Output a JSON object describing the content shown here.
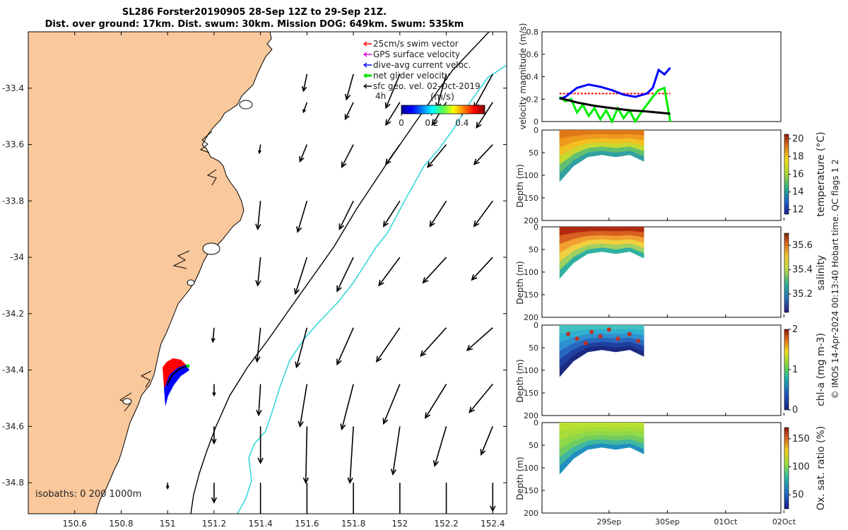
{
  "title": {
    "line1": "SL286 Forster20190905 28-Sep 12Z to 29-Sep 21Z.",
    "line2": "Dist. over ground: 17km. Dist. swum: 30km. Mission DOG: 649km. Swum: 535km"
  },
  "colors": {
    "land": "#F9C89C",
    "sea": "#FFFFFF",
    "isobath_200": "#000000",
    "isobath_1000": "#38D8D8",
    "swim_vector": "#FF0000",
    "gps_velocity": "#E000E0",
    "dive_avg_current": "#0000FF",
    "net_glider_velocity": "#00DD00",
    "sfc_geo_vel": "#000000"
  },
  "chart_data": [
    {
      "type": "map",
      "xlim": [
        150.4,
        152.46
      ],
      "ylim": [
        -34.91,
        -33.2
      ],
      "xticks": [
        "150.6",
        "150.8",
        "151",
        "151.2",
        "151.4",
        "151.6",
        "151.8",
        "152",
        "152.2",
        "152.4"
      ],
      "yticks": [
        "-33.4",
        "-33.6",
        "-33.8",
        "-34",
        "-34.2",
        "-34.4",
        "-34.6",
        "-34.8"
      ],
      "legend": {
        "placement": "top-right",
        "items": [
          {
            "label": "25cm/s swim vector",
            "color": "#FF0000"
          },
          {
            "label": "GPS surface velocity",
            "color": "#E000E0"
          },
          {
            "label": "dive-avg current veloc.",
            "color": "#0000FF"
          },
          {
            "label": "net glider velocity",
            "color": "#00DD00"
          },
          {
            "label": "sfc geo. vel. 02-Oct-2019",
            "color": "#000000"
          }
        ]
      },
      "colorbar": {
        "label": "(m/s)",
        "annotation": "4h",
        "range": [
          0,
          0.55
        ],
        "ticks": [
          "0",
          "0.2",
          "0.4"
        ]
      },
      "isobath_label": "isobaths: 0   200  1000m",
      "glider_track": {
        "lon": 151.05,
        "lat": -34.44
      },
      "current_arrows": [
        [
          151.6,
          -33.35,
          -0.015,
          -0.06
        ],
        [
          151.8,
          -33.35,
          -0.03,
          -0.09
        ],
        [
          152.0,
          -33.35,
          -0.06,
          -0.12
        ],
        [
          152.2,
          -33.35,
          -0.04,
          -0.12
        ],
        [
          152.4,
          -33.35,
          -0.08,
          -0.12
        ],
        [
          151.6,
          -33.45,
          -0.015,
          -0.035
        ],
        [
          151.8,
          -33.45,
          -0.035,
          -0.06
        ],
        [
          152.0,
          -33.45,
          -0.06,
          -0.08
        ],
        [
          152.2,
          -33.45,
          -0.06,
          -0.08
        ],
        [
          152.4,
          -33.45,
          -0.07,
          -0.09
        ],
        [
          151.4,
          -33.6,
          -0.005,
          -0.03
        ],
        [
          151.6,
          -33.6,
          -0.03,
          -0.06
        ],
        [
          151.8,
          -33.6,
          -0.05,
          -0.08
        ],
        [
          152.0,
          -33.6,
          -0.06,
          -0.07
        ],
        [
          152.2,
          -33.6,
          -0.08,
          -0.08
        ],
        [
          152.4,
          -33.6,
          -0.08,
          -0.07
        ],
        [
          151.4,
          -33.8,
          -0.012,
          -0.1
        ],
        [
          151.6,
          -33.8,
          -0.04,
          -0.11
        ],
        [
          151.8,
          -33.8,
          -0.06,
          -0.1
        ],
        [
          152.0,
          -33.8,
          -0.07,
          -0.09
        ],
        [
          152.2,
          -33.8,
          -0.07,
          -0.09
        ],
        [
          152.4,
          -33.8,
          -0.08,
          -0.09
        ],
        [
          151.4,
          -34.0,
          -0.012,
          -0.1
        ],
        [
          151.6,
          -34.0,
          -0.05,
          -0.13
        ],
        [
          151.8,
          -34.0,
          -0.07,
          -0.12
        ],
        [
          152.0,
          -34.0,
          -0.09,
          -0.1
        ],
        [
          152.2,
          -34.0,
          -0.1,
          -0.09
        ],
        [
          152.4,
          -34.0,
          -0.09,
          -0.08
        ],
        [
          151.2,
          -34.25,
          -0.005,
          -0.05
        ],
        [
          151.4,
          -34.25,
          -0.015,
          -0.12
        ],
        [
          151.6,
          -34.25,
          -0.045,
          -0.14
        ],
        [
          151.8,
          -34.25,
          -0.07,
          -0.13
        ],
        [
          152.0,
          -34.25,
          -0.1,
          -0.12
        ],
        [
          152.2,
          -34.25,
          -0.11,
          -0.1
        ],
        [
          152.4,
          -34.25,
          -0.11,
          -0.08
        ],
        [
          151.2,
          -34.45,
          0.0,
          -0.04
        ],
        [
          151.4,
          -34.45,
          -0.008,
          -0.11
        ],
        [
          151.6,
          -34.45,
          -0.03,
          -0.15
        ],
        [
          151.8,
          -34.45,
          -0.05,
          -0.16
        ],
        [
          152.0,
          -34.45,
          -0.07,
          -0.14
        ],
        [
          152.2,
          -34.45,
          -0.09,
          -0.12
        ],
        [
          152.4,
          -34.45,
          -0.1,
          -0.1
        ],
        [
          151.2,
          -34.6,
          0.0,
          -0.06
        ],
        [
          151.4,
          -34.6,
          0.0,
          -0.13
        ],
        [
          151.6,
          -34.6,
          -0.005,
          -0.2
        ],
        [
          151.8,
          -34.6,
          -0.015,
          -0.2
        ],
        [
          152.0,
          -34.6,
          -0.03,
          -0.17
        ],
        [
          152.2,
          -34.6,
          -0.05,
          -0.14
        ],
        [
          152.4,
          -34.6,
          -0.05,
          -0.1
        ],
        [
          151.0,
          -34.8,
          0.0,
          -0.02
        ],
        [
          151.2,
          -34.8,
          0.0,
          -0.07
        ],
        [
          151.4,
          -34.8,
          0.0,
          -0.17
        ],
        [
          151.6,
          -34.8,
          0.0,
          -0.19
        ],
        [
          151.8,
          -34.8,
          0.0,
          -0.18
        ],
        [
          152.0,
          -34.8,
          0.0,
          -0.16
        ],
        [
          152.2,
          -34.8,
          0.0,
          -0.13
        ],
        [
          152.4,
          -34.8,
          0.0,
          -0.1
        ]
      ]
    },
    {
      "type": "line",
      "ylabel": "velocity magnitude (m/s)",
      "ylim": [
        0,
        0.8
      ],
      "yticks": [
        "0",
        "0.2",
        "0.4",
        "0.6",
        "0.8"
      ],
      "series": [
        {
          "color": "#FF0000",
          "x": [
            0,
            0.5,
            1.0,
            1.5,
            1.9
          ],
          "y": [
            0.25,
            0.25,
            0.25,
            0.25,
            0.25
          ]
        },
        {
          "color": "#0000FF",
          "x": [
            0,
            0.1,
            0.3,
            0.5,
            0.7,
            0.9,
            1.1,
            1.3,
            1.5,
            1.6,
            1.7,
            1.8,
            1.9
          ],
          "y": [
            0.2,
            0.22,
            0.3,
            0.33,
            0.31,
            0.28,
            0.24,
            0.22,
            0.25,
            0.3,
            0.46,
            0.42,
            0.48
          ]
        },
        {
          "color": "#00EE00",
          "x": [
            0,
            0.1,
            0.2,
            0.3,
            0.4,
            0.5,
            0.6,
            0.7,
            0.8,
            0.9,
            1.0,
            1.1,
            1.2,
            1.3,
            1.4,
            1.5,
            1.6,
            1.7,
            1.8,
            1.9
          ],
          "y": [
            0.22,
            0.18,
            0.2,
            0.08,
            0.15,
            0.05,
            0.12,
            0.02,
            0.1,
            0.0,
            0.12,
            0.03,
            0.1,
            0.0,
            0.08,
            0.15,
            0.22,
            0.28,
            0.3,
            0.0
          ]
        },
        {
          "color": "#000000",
          "x": [
            0,
            0.3,
            0.6,
            0.9,
            1.2,
            1.5,
            1.9
          ],
          "y": [
            0.21,
            0.17,
            0.14,
            0.12,
            0.1,
            0.09,
            0.07
          ]
        }
      ]
    },
    {
      "type": "heatmap",
      "ylabel": "Depth (m)",
      "ylim": [
        0,
        200
      ],
      "yticks": [
        "0",
        "50",
        "100",
        "150",
        "200"
      ],
      "colorbar": {
        "label": "temperature (°C)",
        "range": [
          11.5,
          20.5
        ],
        "ticks": [
          "12",
          "14",
          "16",
          "18",
          "20"
        ]
      }
    },
    {
      "type": "heatmap",
      "ylabel": "Depth (m)",
      "ylim": [
        0,
        200
      ],
      "yticks": [
        "0",
        "50",
        "100",
        "150",
        "200"
      ],
      "colorbar": {
        "label": "salinity",
        "range": [
          35.05,
          35.7
        ],
        "ticks": [
          "35.2",
          "35.4",
          "35.6"
        ]
      }
    },
    {
      "type": "heatmap",
      "ylabel": "Depth (m)",
      "ylim": [
        0,
        200
      ],
      "yticks": [
        "0",
        "50",
        "100",
        "150",
        "200"
      ],
      "colorbar": {
        "label": "chl-a (mg m-3)",
        "range": [
          0,
          2
        ],
        "ticks": [
          "0",
          "1",
          "2"
        ]
      }
    },
    {
      "type": "heatmap",
      "ylabel": "Depth (m)",
      "ylim": [
        0,
        200
      ],
      "yticks": [
        "0",
        "50",
        "100",
        "150",
        "200"
      ],
      "colorbar": {
        "label": "Ox. sat. ratio (%)",
        "range": [
          25,
          170
        ],
        "ticks": [
          "50",
          "100",
          "150"
        ]
      },
      "xticks": [
        "29Sep",
        "30Sep",
        "01Oct",
        "02Oct"
      ]
    }
  ],
  "side_note": "© IMOS 14-Apr-2024 00:13:40 Hobart time. QC flags 1  2"
}
